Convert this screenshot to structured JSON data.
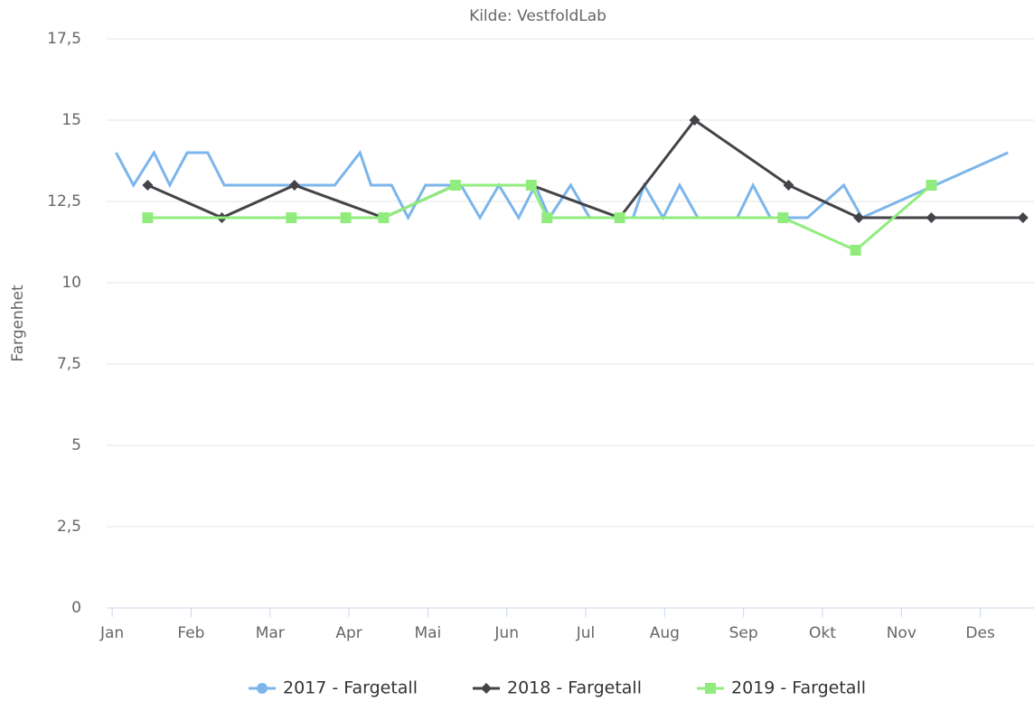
{
  "chart_data": {
    "type": "line",
    "subtitle": "Kilde: VestfoldLab",
    "y_axis_label": "Fargenhet",
    "xlim": [
      -0.07,
      11.68
    ],
    "xticks": [
      {
        "value": 0,
        "label": "Jan"
      },
      {
        "value": 1,
        "label": "Feb"
      },
      {
        "value": 2,
        "label": "Mar"
      },
      {
        "value": 3,
        "label": "Apr"
      },
      {
        "value": 4,
        "label": "Mai"
      },
      {
        "value": 5,
        "label": "Jun"
      },
      {
        "value": 6,
        "label": "Jul"
      },
      {
        "value": 7,
        "label": "Aug"
      },
      {
        "value": 8,
        "label": "Sep"
      },
      {
        "value": 9,
        "label": "Okt"
      },
      {
        "value": 10,
        "label": "Nov"
      },
      {
        "value": 11,
        "label": "Des"
      }
    ],
    "ylim": [
      0,
      17.5
    ],
    "yticks": [
      0,
      {
        "value": 2.5,
        "label": "2,5"
      },
      5,
      {
        "value": 7.5,
        "label": "7,5"
      },
      10,
      {
        "value": 12.5,
        "label": "12,5"
      },
      15,
      {
        "value": 17.5,
        "label": "17,5"
      }
    ],
    "grid": true,
    "legend": "bottom",
    "series": [
      {
        "name": "2017 - Fargetall",
        "color": "#7cb5ec",
        "marker": "circle",
        "x": [
          0.05,
          0.27,
          0.53,
          0.73,
          0.95,
          1.21,
          1.42,
          2.82,
          3.14,
          3.28,
          3.54,
          3.75,
          3.97,
          4.42,
          4.66,
          4.9,
          5.15,
          5.36,
          5.54,
          5.81,
          6.05,
          6.6,
          6.74,
          6.98,
          7.19,
          7.42,
          7.92,
          8.12,
          8.34,
          8.81,
          9.27,
          9.5,
          11.35
        ],
        "values": [
          14,
          13,
          14,
          13,
          14,
          14,
          13,
          13,
          14,
          13,
          13,
          12,
          13,
          13,
          12,
          13,
          12,
          13,
          12,
          13,
          12,
          12,
          13,
          12,
          13,
          12,
          12,
          13,
          12,
          12,
          13,
          12,
          14
        ]
      },
      {
        "name": "2018 - Fargetall",
        "color": "#434348",
        "marker": "diamond",
        "x": [
          0.45,
          1.39,
          2.31,
          3.44,
          4.35,
          5.31,
          6.43,
          7.38,
          8.57,
          9.46,
          10.38,
          11.54
        ],
        "values": [
          13,
          12,
          13,
          12,
          13,
          13,
          12,
          15,
          13,
          12,
          12,
          12
        ]
      },
      {
        "name": "2019 - Fargetall",
        "color": "#90ed7d",
        "marker": "square",
        "x": [
          0.45,
          2.27,
          2.96,
          3.44,
          4.35,
          5.31,
          5.51,
          6.43,
          8.5,
          9.42,
          10.38
        ],
        "values": [
          12,
          12,
          12,
          12,
          13,
          13,
          12,
          12,
          12,
          11,
          13
        ]
      }
    ]
  }
}
